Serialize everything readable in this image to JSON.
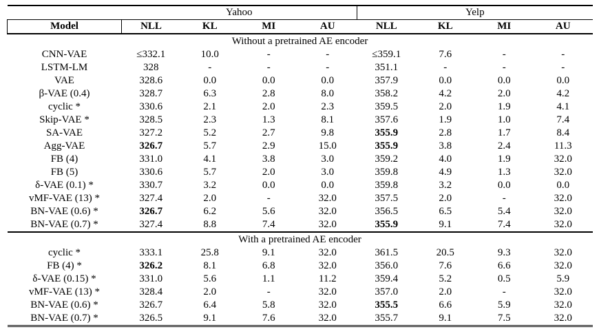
{
  "table": {
    "groups": [
      "Yahoo",
      "Yelp"
    ],
    "columns": [
      "Model",
      "NLL",
      "KL",
      "MI",
      "AU",
      "NLL",
      "KL",
      "MI",
      "AU"
    ],
    "sections": [
      {
        "title": "Without a pretrained AE encoder",
        "rows": [
          {
            "model": "CNN-VAE",
            "cells": [
              "≤332.1",
              "10.0",
              "-",
              "-",
              "≤359.1",
              "7.6",
              "-",
              "-"
            ],
            "bold": []
          },
          {
            "model": "LSTM-LM",
            "cells": [
              "328",
              "-",
              "-",
              "-",
              "351.1",
              "-",
              "-",
              "-"
            ],
            "bold": []
          },
          {
            "model": "VAE",
            "cells": [
              "328.6",
              "0.0",
              "0.0",
              "0.0",
              "357.9",
              "0.0",
              "0.0",
              "0.0"
            ],
            "bold": []
          },
          {
            "model": "β-VAE (0.4)",
            "cells": [
              "328.7",
              "6.3",
              "2.8",
              "8.0",
              "358.2",
              "4.2",
              "2.0",
              "4.2"
            ],
            "bold": []
          },
          {
            "model": "cyclic *",
            "cells": [
              "330.6",
              "2.1",
              "2.0",
              "2.3",
              "359.5",
              "2.0",
              "1.9",
              "4.1"
            ],
            "bold": []
          },
          {
            "model": "Skip-VAE *",
            "cells": [
              "328.5",
              "2.3",
              "1.3",
              "8.1",
              "357.6",
              "1.9",
              "1.0",
              "7.4"
            ],
            "bold": []
          },
          {
            "model": "SA-VAE",
            "cells": [
              "327.2",
              "5.2",
              "2.7",
              "9.8",
              "355.9",
              "2.8",
              "1.7",
              "8.4"
            ],
            "bold": [
              4
            ]
          },
          {
            "model": "Agg-VAE",
            "cells": [
              "326.7",
              "5.7",
              "2.9",
              "15.0",
              "355.9",
              "3.8",
              "2.4",
              "11.3"
            ],
            "bold": [
              0,
              4
            ]
          },
          {
            "model": "FB (4)",
            "cells": [
              "331.0",
              "4.1",
              "3.8",
              "3.0",
              "359.2",
              "4.0",
              "1.9",
              "32.0"
            ],
            "bold": []
          },
          {
            "model": "FB (5)",
            "cells": [
              "330.6",
              "5.7",
              "2.0",
              "3.0",
              "359.8",
              "4.9",
              "1.3",
              "32.0"
            ],
            "bold": []
          },
          {
            "model": "δ-VAE (0.1) *",
            "cells": [
              "330.7",
              "3.2",
              "0.0",
              "0.0",
              "359.8",
              "3.2",
              "0.0",
              "0.0"
            ],
            "bold": []
          },
          {
            "model": "vMF-VAE (13) *",
            "cells": [
              "327.4",
              "2.0",
              "-",
              "32.0",
              "357.5",
              "2.0",
              "-",
              "32.0"
            ],
            "bold": []
          },
          {
            "model": "BN-VAE (0.6) *",
            "cells": [
              "326.7",
              "6.2",
              "5.6",
              "32.0",
              "356.5",
              "6.5",
              "5.4",
              "32.0"
            ],
            "bold": [
              0
            ]
          },
          {
            "model": "BN-VAE (0.7) *",
            "cells": [
              "327.4",
              "8.8",
              "7.4",
              "32.0",
              "355.9",
              "9.1",
              "7.4",
              "32.0"
            ],
            "bold": [
              4
            ]
          }
        ]
      },
      {
        "title": "With a pretrained AE encoder",
        "rows": [
          {
            "model": "cyclic *",
            "cells": [
              "333.1",
              "25.8",
              "9.1",
              "32.0",
              "361.5",
              "20.5",
              "9.3",
              "32.0"
            ],
            "bold": []
          },
          {
            "model": "FB (4) *",
            "cells": [
              "326.2",
              "8.1",
              "6.8",
              "32.0",
              "356.0",
              "7.6",
              "6.6",
              "32.0"
            ],
            "bold": [
              0
            ]
          },
          {
            "model": "δ-VAE (0.15) *",
            "cells": [
              "331.0",
              "5.6",
              "1.1",
              "11.2",
              "359.4",
              "5.2",
              "0.5",
              "5.9"
            ],
            "bold": []
          },
          {
            "model": "vMF-VAE (13) *",
            "cells": [
              "328.4",
              "2.0",
              "-",
              "32.0",
              "357.0",
              "2.0",
              "-",
              "32.0"
            ],
            "bold": []
          },
          {
            "model": "BN-VAE (0.6) *",
            "cells": [
              "326.7",
              "6.4",
              "5.8",
              "32.0",
              "355.5",
              "6.6",
              "5.9",
              "32.0"
            ],
            "bold": [
              4
            ]
          },
          {
            "model": "BN-VAE (0.7) *",
            "cells": [
              "326.5",
              "9.1",
              "7.6",
              "32.0",
              "355.7",
              "9.1",
              "7.5",
              "32.0"
            ],
            "bold": []
          }
        ]
      }
    ]
  }
}
